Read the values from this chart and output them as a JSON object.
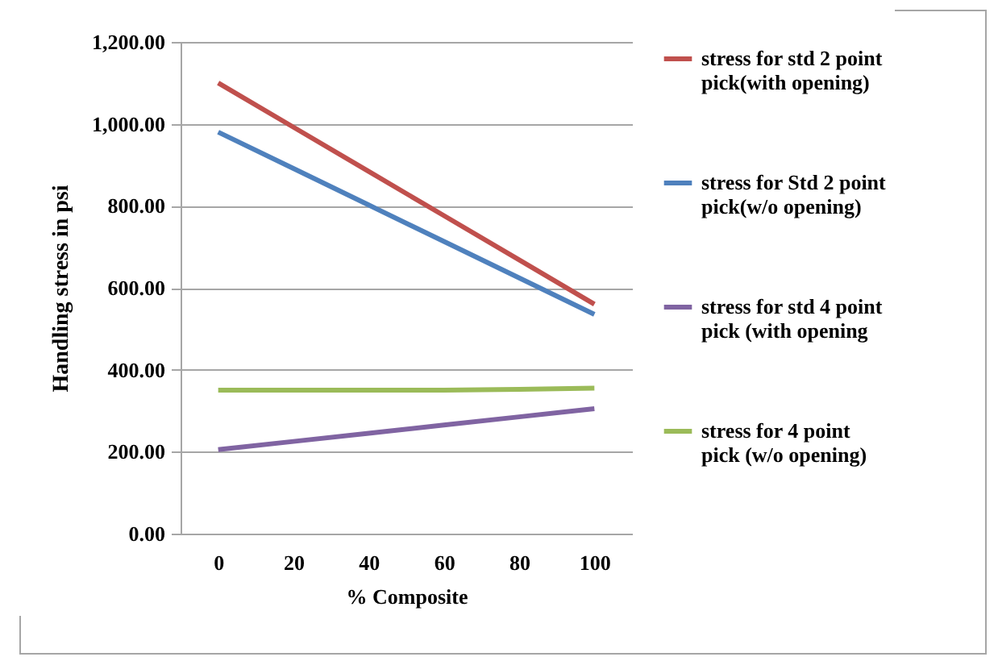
{
  "chart_data": {
    "type": "line",
    "xlabel": "% Composite",
    "ylabel": "Handling  stress  in  psi",
    "categories": [
      "0",
      "20",
      "40",
      "60",
      "80",
      "100"
    ],
    "series": [
      {
        "name": "stress for std 2 point pick(with opening)",
        "color": "#c0504d",
        "values": [
          1100,
          992,
          884,
          776,
          668,
          560
        ]
      },
      {
        "name": "stress for Std 2 point pick(w/o opening)",
        "color": "#4f81bd",
        "values": [
          980,
          891,
          802,
          713,
          624,
          535
        ]
      },
      {
        "name": "stress for std 4 point pick (with opening",
        "color": "#8064a2",
        "values": [
          205,
          225,
          245,
          265,
          285,
          305
        ]
      },
      {
        "name": "stress for 4 point pick (w/o opening)",
        "color": "#9bbb59",
        "values": [
          350,
          350,
          350,
          350,
          352,
          355
        ]
      }
    ],
    "ylim": [
      0,
      1200
    ],
    "yticks": [
      {
        "value": 0,
        "label": "0.00"
      },
      {
        "value": 200,
        "label": "200.00"
      },
      {
        "value": 400,
        "label": "400.00"
      },
      {
        "value": 600,
        "label": "600.00"
      },
      {
        "value": 800,
        "label": "800.00"
      },
      {
        "value": 1000,
        "label": "1,000.00"
      },
      {
        "value": 1200,
        "label": "1,200.00"
      }
    ],
    "grid": "y",
    "legend": "right",
    "marker": "none",
    "line_style": "solid"
  }
}
